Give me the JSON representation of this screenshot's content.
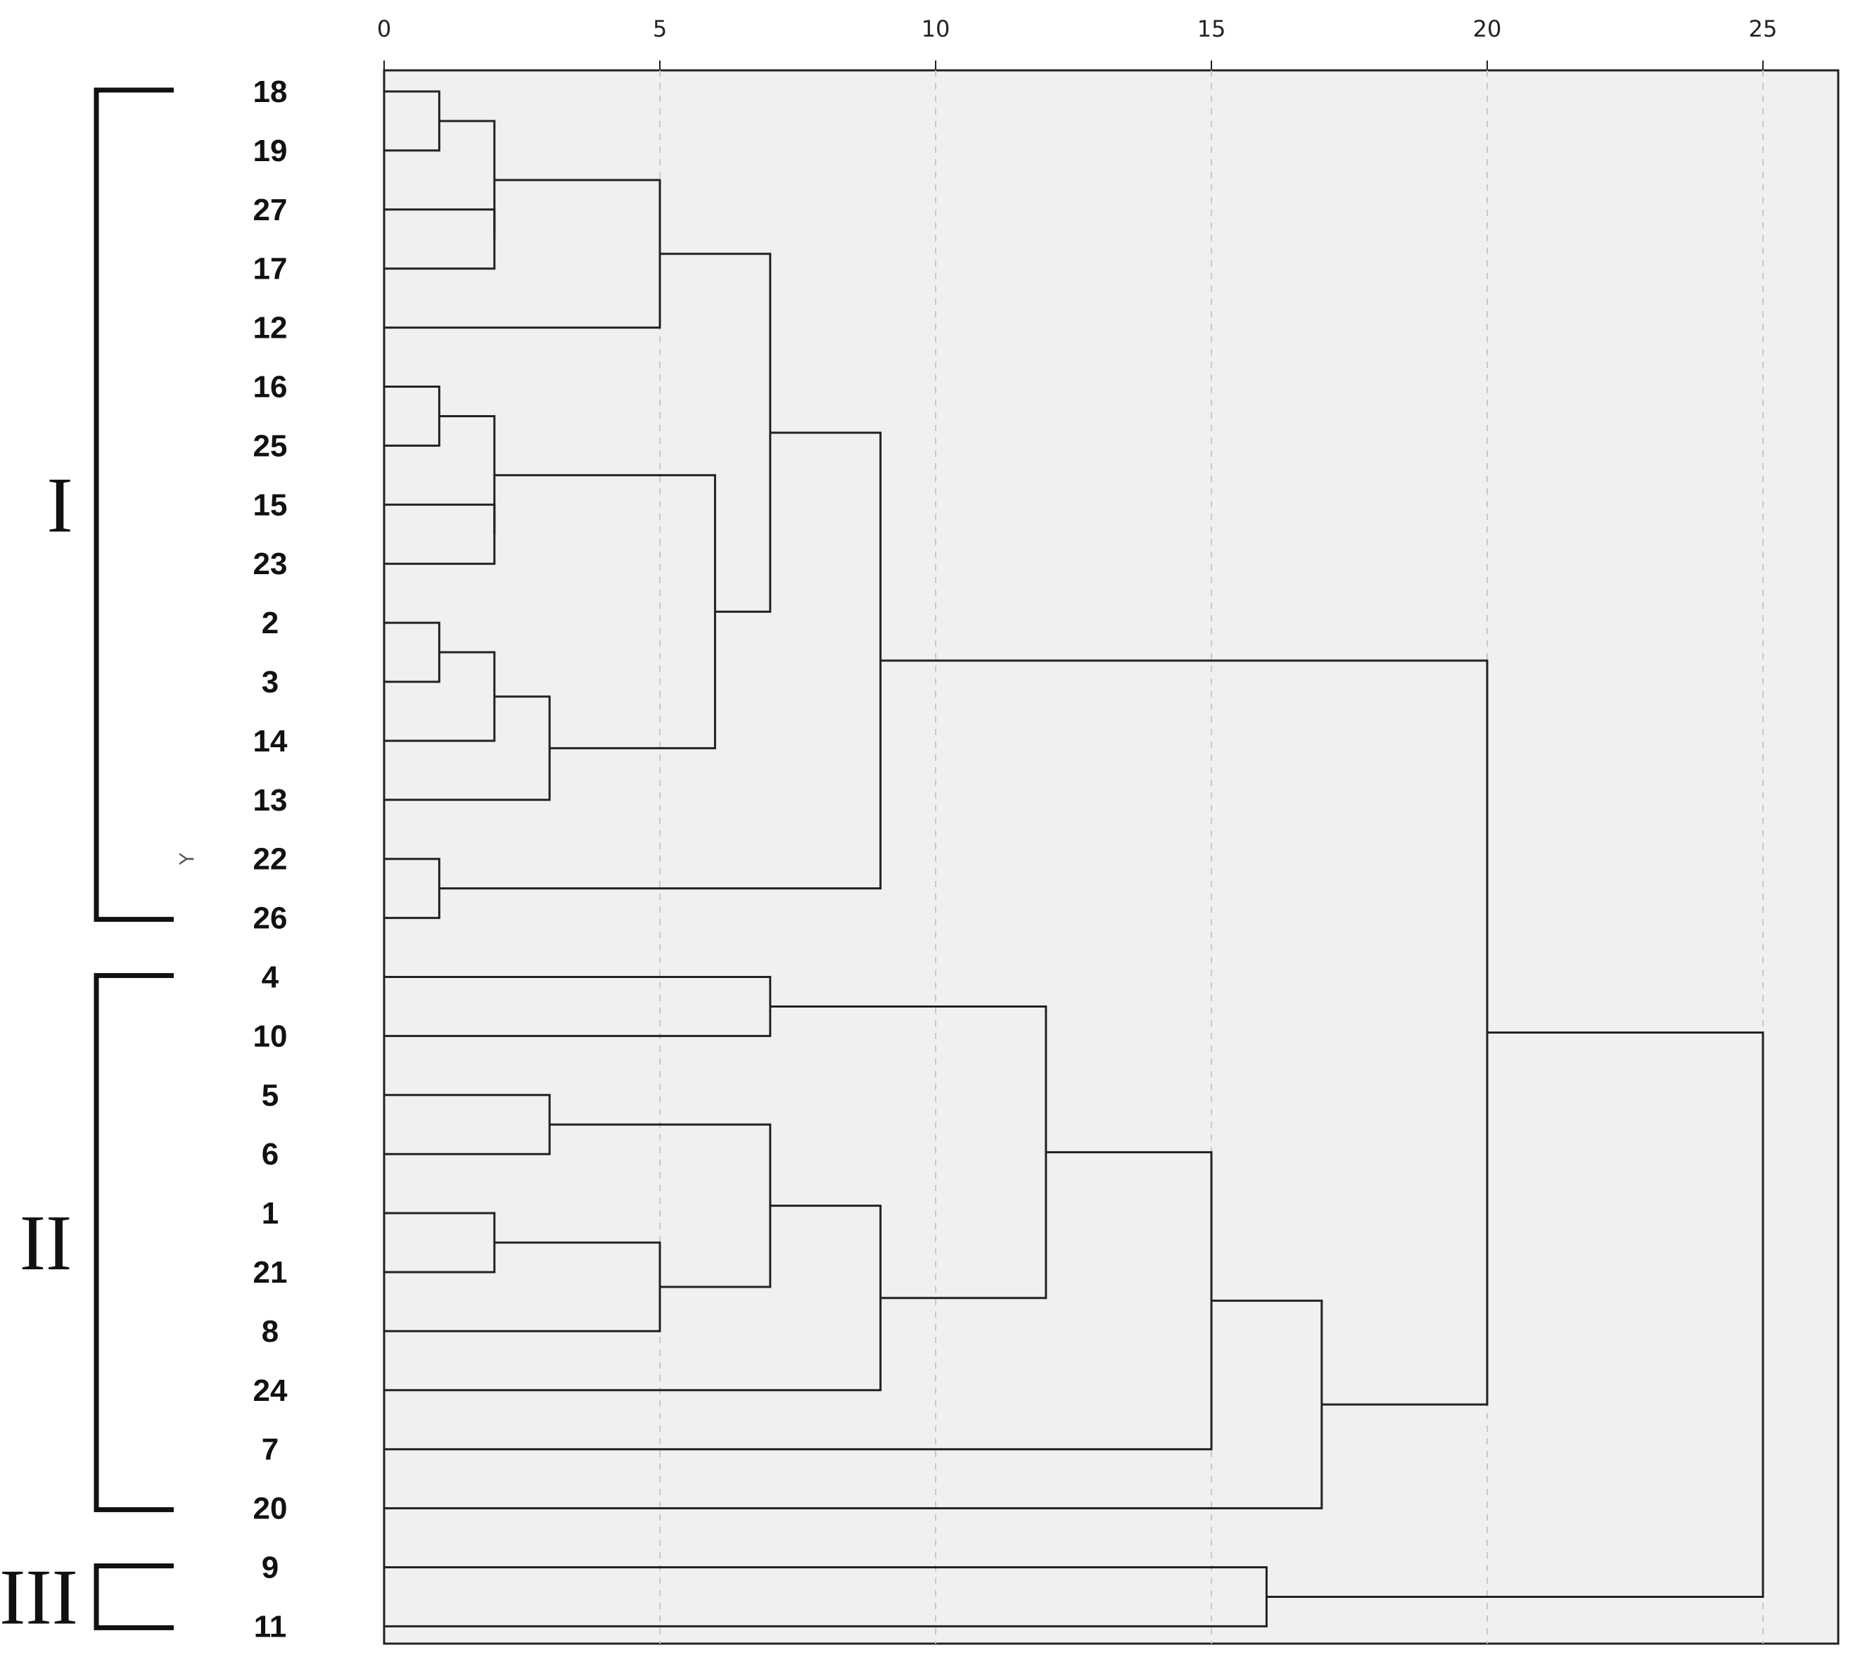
{
  "chart_data": {
    "type": "dendrogram",
    "title": "",
    "xlabel": "",
    "ylabel": "Y",
    "xlim": [
      0,
      26.4
    ],
    "x_ticks": [
      0,
      5,
      10,
      15,
      20,
      25
    ],
    "grid": true,
    "leaves": [
      "18",
      "19",
      "27",
      "17",
      "12",
      "16",
      "25",
      "15",
      "23",
      "2",
      "3",
      "14",
      "13",
      "22",
      "26",
      "4",
      "10",
      "5",
      "6",
      "1",
      "21",
      "8",
      "24",
      "7",
      "20",
      "9",
      "11"
    ],
    "merges": [
      {
        "left": "18",
        "right": "19",
        "height": 1
      },
      {
        "left": "16",
        "right": "25",
        "height": 1
      },
      {
        "left": "2",
        "right": "3",
        "height": 1
      },
      {
        "left": "22",
        "right": "26",
        "height": 1
      },
      {
        "left": "27",
        "right": "17",
        "height": 2
      },
      {
        "left": "15",
        "right": "23",
        "height": 2
      },
      {
        "left": "1",
        "right": "21",
        "height": 2
      },
      {
        "left": "(18,19)",
        "right": "(27,17)",
        "height": 2
      },
      {
        "left": "(16,25)",
        "right": "(15,23)",
        "height": 2
      },
      {
        "left": "(2,3)",
        "right": "14",
        "height": 2
      },
      {
        "left": "((2,3),14)",
        "right": "13",
        "height": 3
      },
      {
        "left": "5",
        "right": "6",
        "height": 3
      },
      {
        "left": "(18,19,27,17)",
        "right": "12",
        "height": 5
      },
      {
        "left": "(1,21)",
        "right": "8",
        "height": 5
      },
      {
        "left": "(16,25,15,23)",
        "right": "(2,3,14,13)",
        "height": 6
      },
      {
        "left": "(18..12)",
        "right": "(16..13)",
        "height": 7
      },
      {
        "left": "4",
        "right": "10",
        "height": 7
      },
      {
        "left": "(5,6)",
        "right": "(1,21,8)",
        "height": 7
      },
      {
        "left": "(18..13)",
        "right": "(22,26)",
        "height": 9
      },
      {
        "left": "(5,6,1,21,8)",
        "right": "24",
        "height": 9
      },
      {
        "left": "(4,10)",
        "right": "(5..24)",
        "height": 12
      },
      {
        "left": "(4..24)",
        "right": "7",
        "height": 15
      },
      {
        "left": "9",
        "right": "11",
        "height": 16
      },
      {
        "left": "(4..7)",
        "right": "20",
        "height": 17
      },
      {
        "left": "Cluster I",
        "right": "(4..20)",
        "height": 20
      },
      {
        "left": "(18..20)",
        "right": "(9,11)",
        "height": 25
      }
    ],
    "clusters": [
      {
        "label": "I",
        "members": [
          "18",
          "19",
          "27",
          "17",
          "12",
          "16",
          "25",
          "15",
          "23",
          "2",
          "3",
          "14",
          "13",
          "22",
          "26"
        ]
      },
      {
        "label": "II",
        "members": [
          "4",
          "10",
          "5",
          "6",
          "1",
          "21",
          "8",
          "24",
          "7",
          "20"
        ]
      },
      {
        "label": "III",
        "members": [
          "9",
          "11"
        ]
      }
    ],
    "colors": {
      "plot_bg": "#f0f0f0",
      "line": "#222222",
      "grid": "#c8c8c8"
    }
  }
}
